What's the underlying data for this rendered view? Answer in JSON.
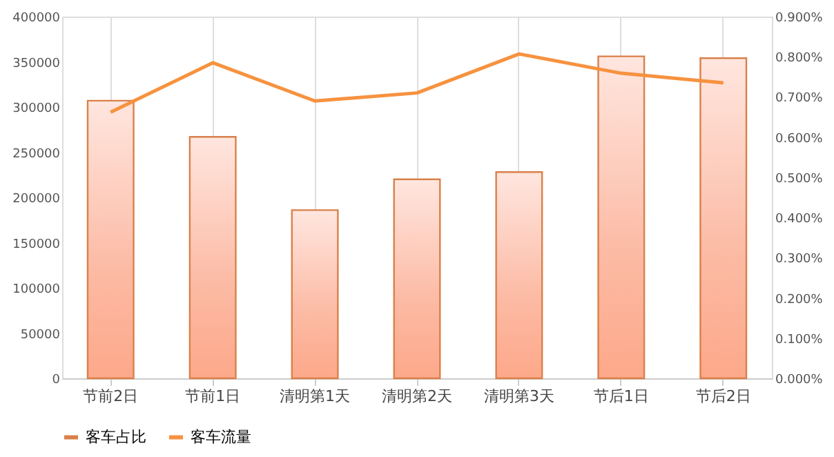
{
  "chart_data": {
    "type": "bar",
    "categories": [
      "节前2日",
      "节前1日",
      "清明第1天",
      "清明第2天",
      "清明第3天",
      "节后1日",
      "节后2日"
    ],
    "series": [
      {
        "name": "客车占比",
        "color": "#d9804a",
        "values": [
          307000,
          267000,
          186000,
          220000,
          228000,
          356000,
          354000
        ]
      },
      {
        "name": "客车流量",
        "type": "line",
        "axis": "y2",
        "color": "#f7923f",
        "values": [
          0.662,
          0.785,
          0.69,
          0.71,
          0.807,
          0.759,
          0.735
        ]
      }
    ],
    "ylim": [
      0,
      400000
    ],
    "yticks": [
      0,
      50000,
      100000,
      150000,
      200000,
      250000,
      300000,
      350000,
      400000
    ],
    "y2lim": [
      0,
      0.9
    ],
    "y2ticks": [
      {
        "value": 0,
        "label": "0.000%"
      },
      {
        "value": 0.1,
        "label": "0.100%"
      },
      {
        "value": 0.2,
        "label": "0.200%"
      },
      {
        "value": 0.3,
        "label": "0.300%"
      },
      {
        "value": 0.4,
        "label": "0.400%"
      },
      {
        "value": 0.5,
        "label": "0.500%"
      },
      {
        "value": 0.6,
        "label": "0.600%"
      },
      {
        "value": 0.7,
        "label": "0.700%"
      },
      {
        "value": 0.8,
        "label": "0.800%"
      },
      {
        "value": 0.9,
        "label": "0.900%"
      }
    ],
    "grid": "x",
    "legend": "bottom",
    "marker": "none",
    "line_style": "solid"
  }
}
